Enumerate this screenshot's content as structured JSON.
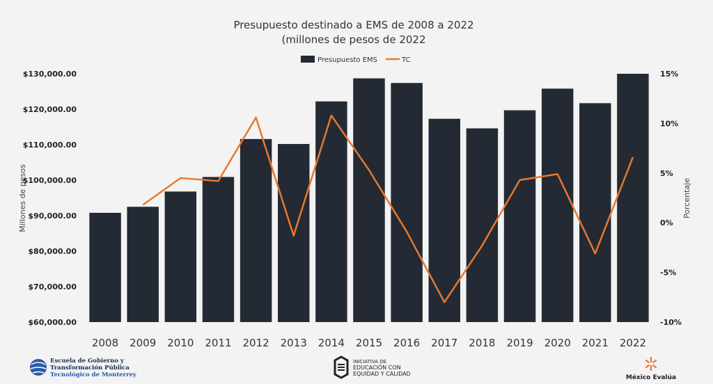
{
  "chart_data": {
    "type": "bar",
    "title_line1": "Presupuesto destinado a EMS de 2008 a 2022",
    "title_line2": "(millones de pesos de 2022",
    "categories": [
      "2008",
      "2009",
      "2010",
      "2011",
      "2012",
      "2013",
      "2014",
      "2015",
      "2016",
      "2017",
      "2018",
      "2019",
      "2020",
      "2021",
      "2022"
    ],
    "series": [
      {
        "name": "Presupuesto EMS",
        "type": "bar",
        "axis": "left",
        "color": "#232a34",
        "values": [
          90800,
          92500,
          96800,
          100900,
          111600,
          110200,
          122200,
          128700,
          127400,
          117300,
          114600,
          119700,
          125800,
          121700,
          130000
        ]
      },
      {
        "name": "TC",
        "type": "line",
        "axis": "right",
        "color": "#e8782c",
        "values": [
          null,
          1.8,
          4.5,
          4.2,
          10.6,
          -1.3,
          10.8,
          5.3,
          -0.9,
          -8.0,
          -2.3,
          4.3,
          4.9,
          -3.1,
          6.6
        ]
      }
    ],
    "ylabel_left": "Millones de pesos",
    "ylabel_right": "Porcentaje",
    "ylim_left": [
      60000,
      130000
    ],
    "ylim_right": [
      -10,
      15
    ],
    "yticks_left": [
      "$60,000.00",
      "$70,000.00",
      "$80,000.00",
      "$90,000.00",
      "$100,000.00",
      "$110,000.00",
      "$120,000.00",
      "$130,000.00"
    ],
    "yticks_right": [
      "-10%",
      "-5%",
      "0%",
      "5%",
      "10%",
      "15%"
    ],
    "grid": false,
    "legend_placement": "top-center"
  },
  "footer": {
    "logo1_line1": "Escuela de Gobierno y",
    "logo1_line2": "Transformación Pública",
    "logo1_line3": "Tecnológico de Monterrey",
    "logo2_line1": "INICIATIVA DE",
    "logo2_line2": "EDUCACIÓN CON",
    "logo2_line3": "EQUIDAD Y CALIDAD",
    "logo3_label": "México Evalúa"
  },
  "colors": {
    "background": "#f3f3f3",
    "bar": "#232a34",
    "line": "#e8782c"
  }
}
